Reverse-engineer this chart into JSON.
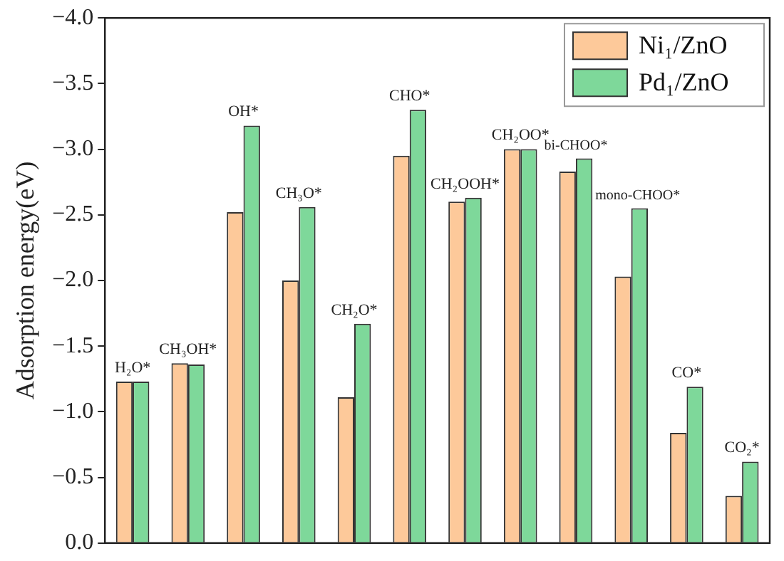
{
  "chart_data": {
    "type": "bar",
    "ylabel": "Adsorption energy(eV)",
    "categories": [
      "H₂O*",
      "CH₃OH*",
      "OH*",
      "CH₃O*",
      "CH₂O*",
      "CHO*",
      "CH₂OOH*",
      "CH₂OO*",
      "bi-CHOO*",
      "mono-CHOO*",
      "CO*",
      "CO₂*"
    ],
    "series": [
      {
        "name": "Ni₁/ZnO",
        "color": "#fdc99a",
        "values": [
          -1.23,
          -1.37,
          -2.52,
          -2.0,
          -1.11,
          -2.95,
          -2.6,
          -3.0,
          -2.83,
          -2.03,
          -0.84,
          -0.36
        ]
      },
      {
        "name": "Pd₁/ZnO",
        "color": "#7ed89a",
        "values": [
          -1.23,
          -1.36,
          -3.18,
          -2.56,
          -1.67,
          -3.3,
          -2.63,
          -3.0,
          -2.93,
          -2.55,
          -1.19,
          -0.62
        ]
      }
    ],
    "ylim": [
      0,
      -4
    ],
    "yticks": [
      {
        "value": 0,
        "label": "0.0"
      },
      {
        "value": -0.5,
        "label": "−0.5"
      },
      {
        "value": -1,
        "label": "−1.0"
      },
      {
        "value": -1.5,
        "label": "−1.5"
      },
      {
        "value": -2,
        "label": "−2.0"
      },
      {
        "value": -2.5,
        "label": "−2.5"
      },
      {
        "value": -3,
        "label": "−3.0"
      },
      {
        "value": -3.5,
        "label": "−3.5"
      },
      {
        "value": -4,
        "label": "−4.0"
      }
    ],
    "tick_labels": "y",
    "grid": false,
    "legend": "top right"
  }
}
